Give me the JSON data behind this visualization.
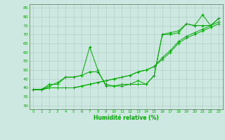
{
  "xlabel": "Humidité relative (%)",
  "xlim": [
    -0.5,
    23.5
  ],
  "ylim": [
    28,
    87
  ],
  "yticks": [
    30,
    35,
    40,
    45,
    50,
    55,
    60,
    65,
    70,
    75,
    80,
    85
  ],
  "xticks": [
    0,
    1,
    2,
    3,
    4,
    5,
    6,
    7,
    8,
    9,
    10,
    11,
    12,
    13,
    14,
    15,
    16,
    17,
    18,
    19,
    20,
    21,
    22,
    23
  ],
  "background_color": "#cce8e0",
  "grid_color": "#aaccc4",
  "line_color": "#00aa00",
  "line1": [
    39,
    39,
    42,
    42,
    46,
    46,
    47,
    63,
    50,
    41,
    41,
    42,
    42,
    44,
    42,
    47,
    70,
    71,
    72,
    76,
    75,
    81,
    75,
    79
  ],
  "line2": [
    39,
    39,
    41,
    43,
    46,
    46,
    47,
    49,
    49,
    42,
    41,
    41,
    42,
    42,
    42,
    47,
    70,
    70,
    71,
    76,
    75,
    75,
    75,
    79
  ],
  "line3": [
    39,
    39,
    40,
    40,
    40,
    40,
    41,
    42,
    43,
    44,
    45,
    46,
    47,
    49,
    50,
    52,
    56,
    60,
    65,
    68,
    70,
    72,
    74,
    76
  ],
  "line4": [
    39,
    39,
    40,
    40,
    40,
    40,
    41,
    42,
    43,
    44,
    45,
    46,
    47,
    49,
    50,
    52,
    57,
    61,
    66,
    69,
    71,
    73,
    75,
    77
  ]
}
